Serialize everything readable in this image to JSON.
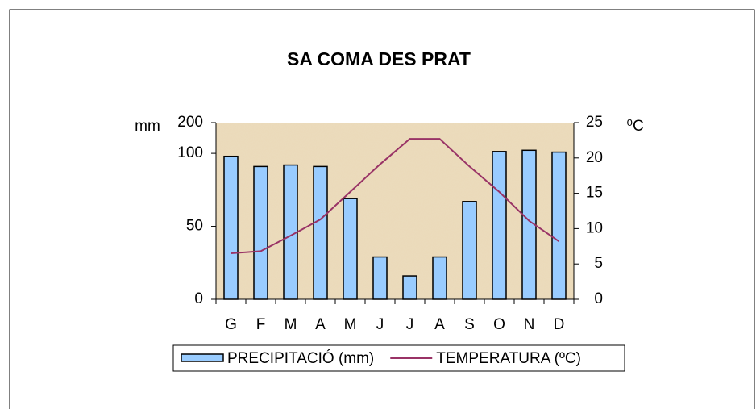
{
  "chart_data": {
    "type": "bar_line",
    "title": "SA COMA DES PRAT",
    "y_label": "mm",
    "y2_label": "⁰C",
    "categories": [
      "G",
      "F",
      "M",
      "A",
      "M",
      "J",
      "J",
      "A",
      "S",
      "O",
      "N",
      "D"
    ],
    "series": [
      {
        "name": "PRECIPITACIÓ (mm)",
        "type": "bar",
        "color": "#99ccff",
        "values": [
          98,
          91,
          92,
          91,
          69,
          29,
          16,
          29,
          67,
          106,
          110,
          104
        ]
      },
      {
        "name": "TEMPERATURA (ºC)",
        "type": "line",
        "axis": "y2",
        "color": "#993366",
        "values": [
          6.5,
          6.8,
          9.0,
          11.3,
          15.2,
          19.1,
          22.7,
          22.7,
          18.8,
          15.2,
          11.1,
          8.2
        ]
      }
    ],
    "ylim": [
      0,
      200
    ],
    "yticks": [
      0,
      50,
      100,
      200
    ],
    "y2lim": [
      0,
      25
    ],
    "y2ticks": [
      0,
      5,
      10,
      15,
      20,
      25
    ]
  }
}
